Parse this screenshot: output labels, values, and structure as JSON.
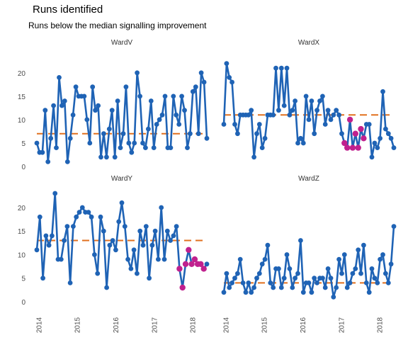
{
  "header": {
    "title": "Runs identified",
    "subtitle": "Runs below the median signalling improvement"
  },
  "colors": {
    "series": "#1f63b5",
    "median": "#e1701f",
    "run_point": "#c0218e"
  },
  "chart_data": {
    "type": "line",
    "facets": [
      "WardV",
      "WardX",
      "WardY",
      "WardZ"
    ],
    "layout": "2x2",
    "x_axis": {
      "start_year": 2014,
      "interval": "month",
      "ticks": [
        "2014",
        "2015",
        "2016",
        "2017",
        "2018"
      ],
      "ticklabel_rotation": "vertical"
    },
    "y_axis": {
      "ylim": [
        0,
        23
      ],
      "ticks": [
        0,
        5,
        10,
        15,
        20
      ]
    },
    "grid": false,
    "series": [
      {
        "name": "WardV",
        "median": 7,
        "values": [
          5,
          3,
          3,
          12,
          1,
          6,
          13,
          4,
          19,
          13,
          14,
          1,
          6,
          11,
          17,
          15,
          15,
          15,
          10,
          5,
          17,
          12,
          13,
          2,
          7,
          2,
          8,
          12,
          2,
          14,
          4,
          7,
          17,
          5,
          3,
          5,
          20,
          15,
          5,
          4,
          8,
          14,
          4,
          9,
          10,
          11,
          15,
          4,
          4,
          15,
          11,
          9,
          15,
          12,
          4,
          7,
          16,
          17,
          7,
          20,
          18,
          6
        ],
        "run_indices": []
      },
      {
        "name": "WardX",
        "median": 11,
        "values": [
          9,
          22,
          19,
          18,
          9,
          7,
          11,
          11,
          11,
          11,
          12,
          2,
          7,
          9,
          4,
          6,
          11,
          11,
          11,
          21,
          12,
          21,
          13,
          21,
          11,
          12,
          14,
          5,
          6,
          5,
          15,
          10,
          14,
          7,
          12,
          14,
          15,
          9,
          12,
          10,
          11,
          12,
          11,
          7,
          5,
          4,
          10,
          4,
          7,
          4,
          8,
          6,
          9,
          9,
          2,
          5,
          4,
          6,
          16,
          8,
          7,
          6,
          4
        ],
        "run_indices": [
          44,
          45,
          46,
          47,
          48,
          49,
          50,
          51
        ]
      },
      {
        "name": "WardY",
        "median": 13,
        "values": [
          11,
          18,
          5,
          14,
          12,
          14,
          23,
          9,
          9,
          13,
          16,
          4,
          16,
          18,
          19,
          20,
          19,
          19,
          18,
          10,
          6,
          18,
          15,
          3,
          12,
          13,
          11,
          17,
          21,
          16,
          9,
          7,
          11,
          6,
          15,
          12,
          16,
          5,
          12,
          15,
          9,
          20,
          9,
          15,
          13,
          14,
          16,
          7,
          3,
          8,
          11,
          8,
          9,
          8,
          8,
          7,
          8
        ],
        "run_indices": [
          47,
          48,
          49,
          50,
          51,
          52,
          53,
          54,
          55
        ]
      },
      {
        "name": "WardZ",
        "median": 4,
        "values": [
          2,
          6,
          3,
          4,
          5,
          6,
          9,
          4,
          2,
          4,
          2,
          3,
          5,
          6,
          8,
          9,
          12,
          4,
          3,
          7,
          7,
          3,
          5,
          10,
          7,
          3,
          5,
          6,
          13,
          2,
          4,
          4,
          2,
          5,
          4,
          5,
          5,
          3,
          7,
          5,
          1,
          3,
          9,
          6,
          10,
          3,
          4,
          6,
          7,
          11,
          6,
          12,
          4,
          2,
          7,
          5,
          4,
          9,
          10,
          6,
          4,
          8,
          16
        ],
        "run_indices": []
      }
    ]
  }
}
